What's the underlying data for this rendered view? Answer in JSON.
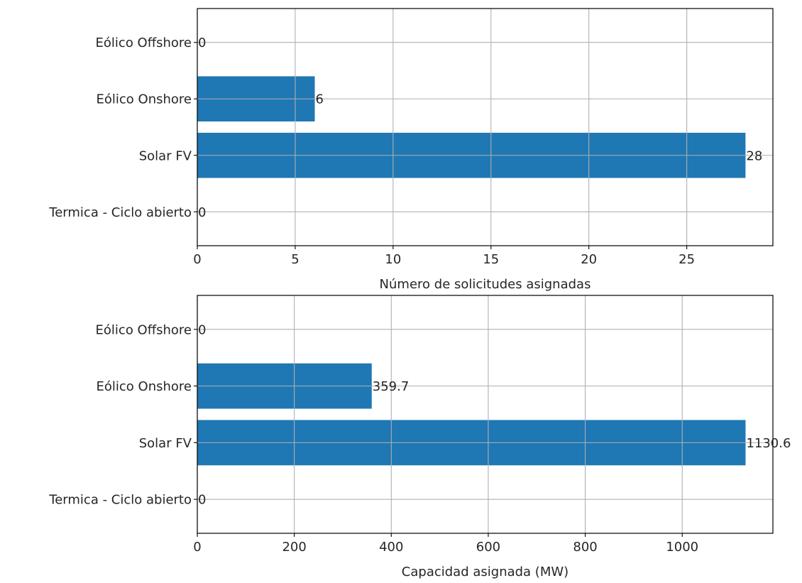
{
  "chart_data": [
    {
      "type": "bar",
      "orientation": "horizontal",
      "categories": [
        "Termica - Ciclo abierto",
        "Solar FV",
        "Eólico Onshore",
        "Eólico Offshore"
      ],
      "values": [
        0,
        28,
        6,
        0
      ],
      "value_labels": [
        "0",
        "28",
        "6",
        "0"
      ],
      "xlabel": "Número de solicitudes asignadas",
      "xlim": [
        0,
        29.4
      ],
      "xticks": [
        0,
        5,
        10,
        15,
        20,
        25
      ],
      "grid": true,
      "bar_color": "#1f77b4"
    },
    {
      "type": "bar",
      "orientation": "horizontal",
      "categories": [
        "Termica - Ciclo abierto",
        "Solar FV",
        "Eólico Onshore",
        "Eólico Offshore"
      ],
      "values": [
        0,
        1130.6,
        359.7,
        0
      ],
      "value_labels": [
        "0",
        "1130.6",
        "359.7",
        "0"
      ],
      "xlabel": "Capacidad asignada (MW)",
      "xlim": [
        0,
        1187
      ],
      "xticks": [
        0,
        200,
        400,
        600,
        800,
        1000
      ],
      "grid": true,
      "bar_color": "#1f77b4"
    }
  ]
}
